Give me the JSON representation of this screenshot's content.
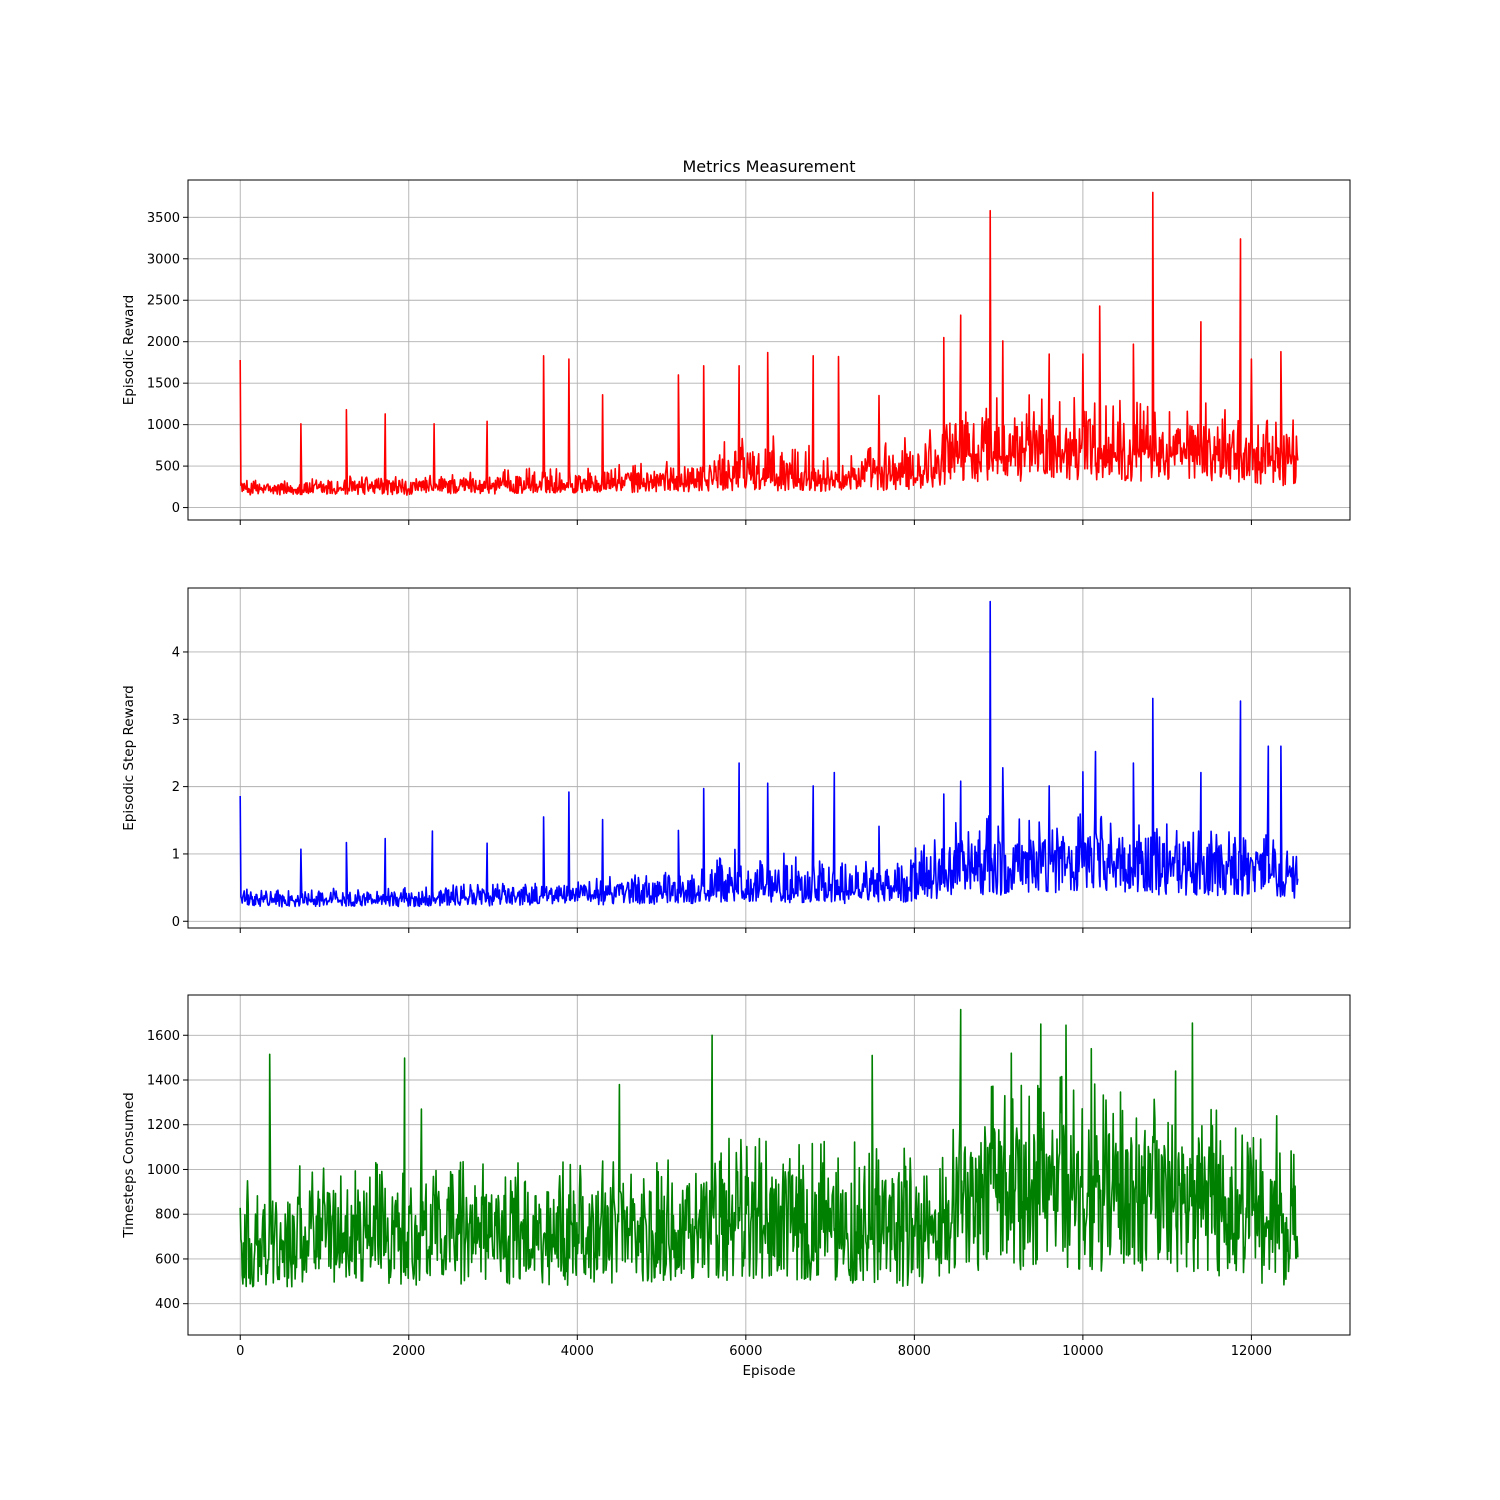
{
  "figure": {
    "title": "Metrics Measurement",
    "xlabel": "Episode"
  },
  "chart_data": [
    {
      "type": "line",
      "title": "Metrics Measurement",
      "xlabel": "",
      "ylabel": "Episodic Reward",
      "xlim": [
        -620,
        13170
      ],
      "ylim": [
        -150,
        3950
      ],
      "xticks": [
        0,
        2000,
        4000,
        6000,
        8000,
        10000,
        12000
      ],
      "xtick_labels": [],
      "yticks": [
        0,
        500,
        1000,
        1500,
        2000,
        2500,
        3000,
        3500
      ],
      "ytick_labels": [
        "0",
        "500",
        "1000",
        "1500",
        "2000",
        "2500",
        "3000",
        "3500"
      ],
      "grid": true,
      "series": [
        {
          "color": "#ff0000",
          "x": [
            0,
            500,
            1000,
            1500,
            2000,
            2500,
            3000,
            3500,
            4000,
            4500,
            5000,
            5500,
            6000,
            6500,
            7000,
            7500,
            8000,
            8500,
            9000,
            9500,
            10000,
            10500,
            11000,
            11500,
            12000,
            12550
          ],
          "y": [
            220,
            210,
            230,
            240,
            220,
            250,
            260,
            270,
            280,
            290,
            300,
            320,
            360,
            350,
            340,
            370,
            380,
            600,
            620,
            650,
            700,
            640,
            620,
            630,
            560,
            520
          ],
          "low": [
            140,
            130,
            140,
            140,
            130,
            140,
            140,
            150,
            150,
            150,
            160,
            160,
            170,
            160,
            160,
            160,
            150,
            220,
            220,
            230,
            250,
            240,
            230,
            230,
            200,
            190
          ],
          "high": [
            350,
            330,
            380,
            400,
            380,
            420,
            450,
            480,
            500,
            520,
            560,
            600,
            1000,
            800,
            700,
            750,
            900,
            1300,
            1400,
            1350,
            1400,
            1300,
            1250,
            1300,
            1100,
            1150
          ],
          "spikes": [
            [
              0,
              1780
            ],
            [
              720,
              1010
            ],
            [
              1260,
              1180
            ],
            [
              1720,
              1130
            ],
            [
              2300,
              1010
            ],
            [
              2930,
              1040
            ],
            [
              3600,
              1830
            ],
            [
              3900,
              1790
            ],
            [
              4300,
              1360
            ],
            [
              5200,
              1600
            ],
            [
              5500,
              1710
            ],
            [
              5920,
              1710
            ],
            [
              6260,
              1870
            ],
            [
              6800,
              1830
            ],
            [
              7100,
              1820
            ],
            [
              7580,
              1350
            ],
            [
              8350,
              2050
            ],
            [
              8550,
              2320
            ],
            [
              8900,
              3580
            ],
            [
              9050,
              2010
            ],
            [
              9600,
              1850
            ],
            [
              10000,
              1850
            ],
            [
              10200,
              2430
            ],
            [
              10600,
              1970
            ],
            [
              10830,
              3800
            ],
            [
              11400,
              2240
            ],
            [
              11870,
              3240
            ],
            [
              12000,
              1790
            ],
            [
              12350,
              1880
            ]
          ]
        }
      ]
    },
    {
      "type": "line",
      "xlabel": "",
      "ylabel": "Episodic Step Reward",
      "xlim": [
        -620,
        13170
      ],
      "ylim": [
        -0.1,
        4.95
      ],
      "xticks": [
        0,
        2000,
        4000,
        6000,
        8000,
        10000,
        12000
      ],
      "xtick_labels": [],
      "yticks": [
        0,
        1,
        2,
        3,
        4
      ],
      "ytick_labels": [
        "0",
        "1",
        "2",
        "3",
        "4"
      ],
      "grid": true,
      "series": [
        {
          "color": "#0000ff",
          "x": [
            0,
            500,
            1000,
            1500,
            2000,
            2500,
            3000,
            3500,
            4000,
            4500,
            5000,
            5500,
            6000,
            6500,
            7000,
            7500,
            8000,
            8500,
            9000,
            9500,
            10000,
            10500,
            11000,
            11500,
            12000,
            12550
          ],
          "y": [
            0.33,
            0.31,
            0.32,
            0.33,
            0.33,
            0.35,
            0.35,
            0.37,
            0.38,
            0.39,
            0.4,
            0.43,
            0.47,
            0.45,
            0.44,
            0.46,
            0.48,
            0.72,
            0.74,
            0.76,
            0.8,
            0.76,
            0.74,
            0.75,
            0.68,
            0.66
          ],
          "low": [
            0.2,
            0.19,
            0.2,
            0.2,
            0.19,
            0.2,
            0.2,
            0.21,
            0.21,
            0.21,
            0.22,
            0.22,
            0.23,
            0.22,
            0.22,
            0.22,
            0.21,
            0.29,
            0.29,
            0.3,
            0.32,
            0.31,
            0.3,
            0.3,
            0.27,
            0.26
          ],
          "high": [
            0.48,
            0.46,
            0.5,
            0.52,
            0.5,
            0.55,
            0.58,
            0.62,
            0.65,
            0.68,
            0.72,
            0.78,
            1.2,
            1.0,
            0.9,
            0.95,
            1.1,
            1.5,
            1.6,
            1.55,
            1.6,
            1.5,
            1.45,
            1.5,
            1.3,
            1.3
          ],
          "spikes": [
            [
              0,
              1.86
            ],
            [
              720,
              1.07
            ],
            [
              1260,
              1.17
            ],
            [
              1720,
              1.23
            ],
            [
              2280,
              1.34
            ],
            [
              2930,
              1.16
            ],
            [
              3600,
              1.55
            ],
            [
              3900,
              1.92
            ],
            [
              4300,
              1.51
            ],
            [
              5200,
              1.35
            ],
            [
              5500,
              1.97
            ],
            [
              5920,
              2.35
            ],
            [
              6260,
              2.05
            ],
            [
              6800,
              2.01
            ],
            [
              7050,
              2.21
            ],
            [
              7580,
              1.41
            ],
            [
              8350,
              1.89
            ],
            [
              8550,
              2.08
            ],
            [
              8900,
              4.75
            ],
            [
              9050,
              2.28
            ],
            [
              9600,
              2.01
            ],
            [
              10000,
              2.22
            ],
            [
              10150,
              2.52
            ],
            [
              10600,
              2.35
            ],
            [
              10830,
              3.31
            ],
            [
              11400,
              2.21
            ],
            [
              11870,
              3.27
            ],
            [
              12200,
              2.6
            ],
            [
              12350,
              2.6
            ]
          ]
        }
      ]
    },
    {
      "type": "line",
      "xlabel": "Episode",
      "ylabel": "Timesteps Consumed",
      "xlim": [
        -620,
        13170
      ],
      "ylim": [
        260,
        1780
      ],
      "xticks": [
        0,
        2000,
        4000,
        6000,
        8000,
        10000,
        12000
      ],
      "xtick_labels": [
        "0",
        "2000",
        "4000",
        "6000",
        "8000",
        "10000",
        "12000"
      ],
      "yticks": [
        400,
        600,
        800,
        1000,
        1200,
        1400,
        1600
      ],
      "ytick_labels": [
        "400",
        "600",
        "800",
        "1000",
        "1200",
        "1400",
        "1600"
      ],
      "grid": true,
      "series": [
        {
          "color": "#008000",
          "x": [
            0,
            500,
            1000,
            1500,
            2000,
            2500,
            3000,
            3500,
            4000,
            4500,
            5000,
            5500,
            6000,
            6500,
            7000,
            7500,
            8000,
            8500,
            9000,
            9500,
            10000,
            10500,
            11000,
            11500,
            12000,
            12550
          ],
          "y": [
            660,
            670,
            690,
            700,
            690,
            690,
            680,
            690,
            690,
            700,
            700,
            710,
            740,
            740,
            720,
            700,
            700,
            850,
            880,
            880,
            870,
            850,
            840,
            830,
            760,
            720
          ],
          "low": [
            430,
            420,
            430,
            430,
            420,
            430,
            430,
            430,
            430,
            440,
            440,
            440,
            450,
            450,
            440,
            430,
            420,
            470,
            470,
            470,
            470,
            460,
            460,
            450,
            420,
            400
          ],
          "high": [
            950,
            1000,
            1050,
            1080,
            1050,
            1040,
            1040,
            1060,
            1060,
            1080,
            1080,
            1100,
            1180,
            1180,
            1130,
            1120,
            1150,
            1350,
            1400,
            1420,
            1420,
            1350,
            1330,
            1300,
            1150,
            1100
          ],
          "spikes": [
            [
              350,
              1515
            ],
            [
              1950,
              1498
            ],
            [
              2150,
              1270
            ],
            [
              4500,
              1380
            ],
            [
              5600,
              1600
            ],
            [
              7500,
              1510
            ],
            [
              8550,
              1715
            ],
            [
              9150,
              1520
            ],
            [
              9500,
              1650
            ],
            [
              9800,
              1645
            ],
            [
              10100,
              1540
            ],
            [
              11300,
              1655
            ],
            [
              11100,
              1440
            ],
            [
              12300,
              1240
            ]
          ]
        }
      ]
    }
  ]
}
